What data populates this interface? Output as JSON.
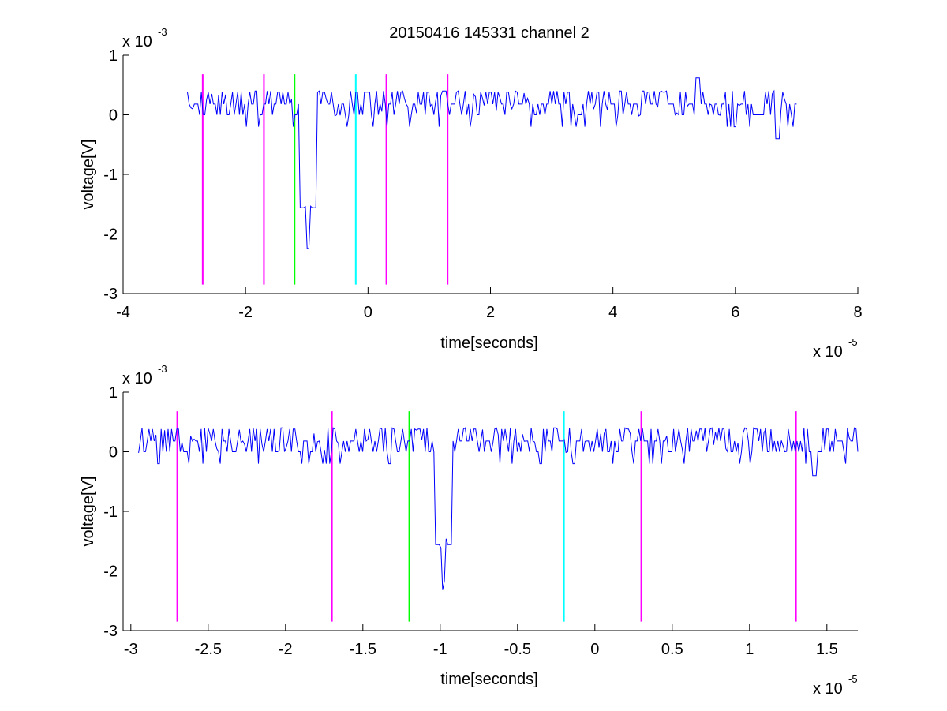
{
  "chart_data": [
    {
      "type": "line",
      "title": "20150416 145331 channel 2",
      "xlabel": "time[seconds]",
      "ylabel": "voltage[V]",
      "x_multiplier_label": "x 10",
      "x_multiplier_exp": "-5",
      "y_multiplier_label": "x 10",
      "y_multiplier_exp": "-3",
      "xlim": [
        -4,
        8
      ],
      "ylim": [
        -3,
        1
      ],
      "xticks": [
        "-4",
        "-2",
        "0",
        "2",
        "4",
        "6",
        "8"
      ],
      "yticks": [
        "-3",
        "-2",
        "-1",
        "0",
        "1"
      ],
      "xtick_values": [
        -4,
        -2,
        0,
        2,
        4,
        6,
        8
      ],
      "ytick_values": [
        -3,
        -2,
        -1,
        0,
        1
      ],
      "markers": [
        {
          "x": -2.7,
          "color": "#ff00ff"
        },
        {
          "x": -1.7,
          "color": "#ff00ff"
        },
        {
          "x": -1.2,
          "color": "#00ff00"
        },
        {
          "x": -0.2,
          "color": "#00ffff"
        },
        {
          "x": 0.3,
          "color": "#ff00ff"
        },
        {
          "x": 1.3,
          "color": "#ff00ff"
        }
      ],
      "marker_ylim": [
        -2.85,
        0.68
      ],
      "series": [
        {
          "color": "#0000ff",
          "x_range": [
            -2.95,
            7.0
          ],
          "baseline": 0.18,
          "noise_amplitude": 0.2,
          "events": [
            {
              "x": -0.98,
              "y": -2.6
            },
            {
              "x": 6.68,
              "y": -0.4
            },
            {
              "x": 5.38,
              "y": 0.62
            }
          ]
        }
      ]
    },
    {
      "type": "line",
      "title": "",
      "xlabel": "time[seconds]",
      "ylabel": "voltage[V]",
      "x_multiplier_label": "x 10",
      "x_multiplier_exp": "-5",
      "y_multiplier_label": "x 10",
      "y_multiplier_exp": "-3",
      "xlim": [
        -3.05,
        1.7
      ],
      "ylim": [
        -3,
        1
      ],
      "xticks": [
        "-3",
        "-2.5",
        "-2",
        "-1.5",
        "-1",
        "-0.5",
        "0",
        "0.5",
        "1",
        "1.5"
      ],
      "yticks": [
        "-3",
        "-2",
        "-1",
        "0",
        "1"
      ],
      "xtick_values": [
        -3,
        -2.5,
        -2,
        -1.5,
        -1,
        -0.5,
        0,
        0.5,
        1,
        1.5
      ],
      "ytick_values": [
        -3,
        -2,
        -1,
        0,
        1
      ],
      "markers": [
        {
          "x": -2.7,
          "color": "#ff00ff"
        },
        {
          "x": -1.7,
          "color": "#ff00ff"
        },
        {
          "x": -1.2,
          "color": "#00ff00"
        },
        {
          "x": -0.2,
          "color": "#00ffff"
        },
        {
          "x": 0.3,
          "color": "#ff00ff"
        },
        {
          "x": 1.3,
          "color": "#ff00ff"
        }
      ],
      "marker_ylim": [
        -2.85,
        0.68
      ],
      "series": [
        {
          "color": "#0000ff",
          "x_range": [
            -2.95,
            1.7
          ],
          "baseline": 0.18,
          "noise_amplitude": 0.2,
          "events": [
            {
              "x": -0.98,
              "y": -2.6
            },
            {
              "x": 1.42,
              "y": -0.4
            }
          ]
        }
      ]
    }
  ]
}
